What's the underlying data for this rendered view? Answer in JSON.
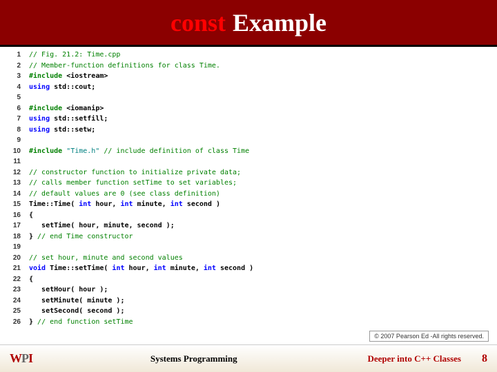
{
  "title": {
    "keyword": "const",
    "rest": "Example"
  },
  "code": [
    [
      {
        "c": "tok-comment",
        "t": "// Fig. 21.2: Time.cpp"
      }
    ],
    [
      {
        "c": "tok-comment",
        "t": "// Member-function definitions for class Time."
      }
    ],
    [
      {
        "c": "tok-pre",
        "t": "#include "
      },
      {
        "c": "tok-txt",
        "t": "<iostream>"
      }
    ],
    [
      {
        "c": "tok-kw",
        "t": "using "
      },
      {
        "c": "tok-txt",
        "t": "std::cout;"
      }
    ],
    [],
    [
      {
        "c": "tok-pre",
        "t": "#include "
      },
      {
        "c": "tok-txt",
        "t": "<iomanip>"
      }
    ],
    [
      {
        "c": "tok-kw",
        "t": "using "
      },
      {
        "c": "tok-txt",
        "t": "std::setfill;"
      }
    ],
    [
      {
        "c": "tok-kw",
        "t": "using "
      },
      {
        "c": "tok-txt",
        "t": "std::setw;"
      }
    ],
    [],
    [
      {
        "c": "tok-pre",
        "t": "#include "
      },
      {
        "c": "tok-str",
        "t": "\"Time.h\" "
      },
      {
        "c": "tok-comment",
        "t": "// include definition of class Time"
      }
    ],
    [],
    [
      {
        "c": "tok-comment",
        "t": "// constructor function to initialize private data;"
      }
    ],
    [
      {
        "c": "tok-comment",
        "t": "// calls member function setTime to set variables;"
      }
    ],
    [
      {
        "c": "tok-comment",
        "t": "// default values are 0 (see class definition)"
      }
    ],
    [
      {
        "c": "tok-txt",
        "t": "Time::Time( "
      },
      {
        "c": "tok-kw",
        "t": "int"
      },
      {
        "c": "tok-txt",
        "t": " hour, "
      },
      {
        "c": "tok-kw",
        "t": "int"
      },
      {
        "c": "tok-txt",
        "t": " minute, "
      },
      {
        "c": "tok-kw",
        "t": "int"
      },
      {
        "c": "tok-txt",
        "t": " second ) "
      }
    ],
    [
      {
        "c": "tok-txt",
        "t": "{ "
      }
    ],
    [
      {
        "c": "tok-txt",
        "t": "   setTime( hour, minute, second ); "
      }
    ],
    [
      {
        "c": "tok-txt",
        "t": "} "
      },
      {
        "c": "tok-comment",
        "t": "// end Time constructor"
      }
    ],
    [],
    [
      {
        "c": "tok-comment",
        "t": "// set hour, minute and second values"
      }
    ],
    [
      {
        "c": "tok-kw",
        "t": "void"
      },
      {
        "c": "tok-txt",
        "t": " Time::setTime( "
      },
      {
        "c": "tok-kw",
        "t": "int"
      },
      {
        "c": "tok-txt",
        "t": " hour, "
      },
      {
        "c": "tok-kw",
        "t": "int"
      },
      {
        "c": "tok-txt",
        "t": " minute, "
      },
      {
        "c": "tok-kw",
        "t": "int"
      },
      {
        "c": "tok-txt",
        "t": " second ) "
      }
    ],
    [
      {
        "c": "tok-txt",
        "t": "{ "
      }
    ],
    [
      {
        "c": "tok-txt",
        "t": "   setHour( hour ); "
      }
    ],
    [
      {
        "c": "tok-txt",
        "t": "   setMinute( minute ); "
      }
    ],
    [
      {
        "c": "tok-txt",
        "t": "   setSecond( second ); "
      }
    ],
    [
      {
        "c": "tok-txt",
        "t": "} "
      },
      {
        "c": "tok-comment",
        "t": "// end function setTime"
      }
    ]
  ],
  "copyright": "© 2007 Pearson Ed -All rights reserved.",
  "footer": {
    "left_course": "Systems Programming",
    "subtitle": "Deeper into C++ Classes",
    "page": "8"
  }
}
